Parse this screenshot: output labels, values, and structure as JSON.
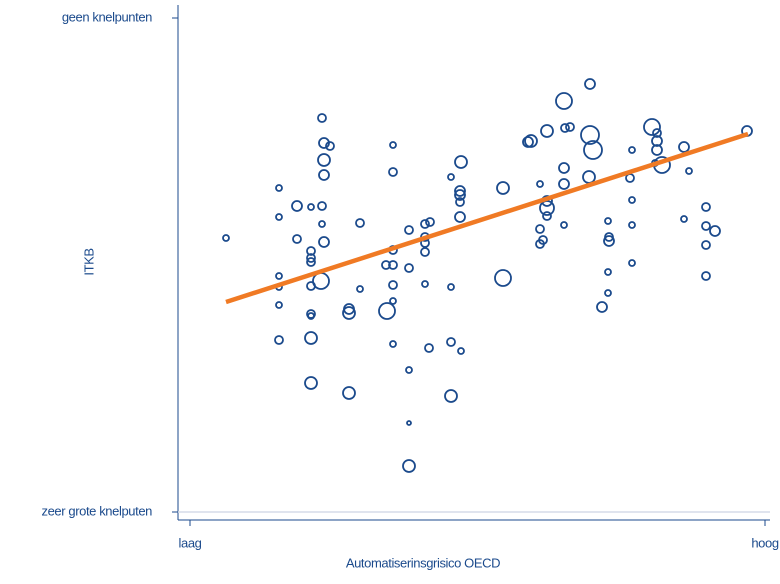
{
  "chart_data": {
    "type": "scatter",
    "xlabel": "Automatiserinsgrisico OECD",
    "ylabel": "ITKB",
    "xlim": [
      -12,
      580
    ],
    "ylim": [
      -8,
      507
    ],
    "xticks": [
      {
        "value": 0,
        "label": "laag"
      },
      {
        "value": 575,
        "label": "hoog"
      }
    ],
    "yticks": [
      {
        "value": 0,
        "label": "zeer grote knelputen"
      },
      {
        "value": 494,
        "label": "geen knelpunten"
      }
    ],
    "color": "#1b4a8c",
    "trend_color": "#f07a24",
    "x": [
      36,
      89,
      89,
      89,
      89,
      89,
      89,
      107,
      107,
      121,
      121,
      121,
      121,
      121,
      121,
      121,
      121,
      121,
      132,
      134,
      140,
      134,
      134,
      132,
      132,
      134,
      131,
      159,
      159,
      159,
      170,
      170,
      196,
      197,
      203,
      203,
      203,
      203,
      203,
      203,
      203,
      219,
      219,
      219,
      219,
      219,
      235,
      235,
      235,
      235,
      235,
      240,
      239,
      261,
      261,
      261,
      261,
      270,
      270,
      270,
      270,
      271,
      271,
      313,
      313,
      338,
      341,
      357,
      350,
      350,
      350,
      353,
      357,
      357,
      357,
      374,
      375,
      380,
      374,
      374,
      374,
      400,
      400,
      403,
      399,
      412,
      418,
      419,
      419,
      418,
      418,
      440,
      442,
      442,
      442,
      442,
      462,
      467,
      467,
      467,
      465,
      472,
      494,
      494,
      499,
      516,
      516,
      516,
      516,
      525,
      557
    ],
    "y": [
      274,
      324,
      295,
      236,
      225,
      207,
      172,
      306,
      273,
      305,
      261,
      254,
      250,
      226,
      198,
      196,
      174,
      129,
      394,
      369,
      366,
      352,
      337,
      306,
      288,
      270,
      231,
      203,
      199,
      119,
      289,
      223,
      247,
      201,
      367,
      340,
      262,
      247,
      227,
      211,
      168,
      282,
      244,
      142,
      89,
      46,
      288,
      275,
      269,
      260,
      228,
      290,
      164,
      335,
      225,
      170,
      116,
      321,
      317,
      295,
      310,
      350,
      161,
      324,
      234,
      370,
      371,
      381,
      328,
      283,
      268,
      272,
      311,
      304,
      296,
      411,
      384,
      385,
      344,
      328,
      287,
      428,
      377,
      362,
      335,
      205,
      291,
      275,
      271,
      219,
      240,
      334,
      362,
      312,
      287,
      249,
      385,
      379,
      371,
      362,
      349,
      347,
      365,
      293,
      341,
      305,
      286,
      267,
      236,
      281,
      381
    ],
    "size": [
      3,
      3,
      3,
      3,
      3,
      3,
      4,
      5,
      4,
      3,
      4,
      4,
      4,
      4,
      4,
      3,
      6,
      6,
      4,
      5,
      4,
      6,
      5,
      4,
      3,
      5,
      8,
      5,
      6,
      6,
      4,
      3,
      4,
      8,
      3,
      4,
      4,
      4,
      4,
      3,
      3,
      4,
      4,
      3,
      2,
      6,
      4,
      4,
      4,
      4,
      3,
      4,
      4,
      3,
      3,
      4,
      6,
      5,
      5,
      5,
      4,
      6,
      3,
      6,
      8,
      5,
      6,
      6,
      3,
      4,
      4,
      4,
      5,
      7,
      4,
      8,
      4,
      4,
      5,
      5,
      3,
      5,
      9,
      9,
      6,
      5,
      3,
      4,
      5,
      3,
      3,
      4,
      3,
      3,
      3,
      3,
      8,
      4,
      5,
      5,
      3,
      8,
      5,
      3,
      3,
      4,
      4,
      4,
      4,
      5,
      5
    ],
    "trend": {
      "x": [
        36,
        558
      ],
      "y": [
        210,
        378
      ]
    }
  }
}
